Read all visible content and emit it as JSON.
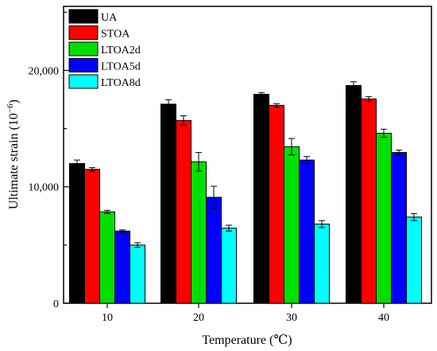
{
  "chart_data": {
    "type": "bar",
    "categories": [
      "10",
      "20",
      "30",
      "40"
    ],
    "series": [
      {
        "name": "UA",
        "color": "#000000",
        "values": [
          12000,
          17100,
          17950,
          18700
        ],
        "errors": [
          300,
          380,
          150,
          320
        ]
      },
      {
        "name": "STOA",
        "color": "#ff0000",
        "values": [
          11500,
          15700,
          17000,
          17550
        ],
        "errors": [
          150,
          400,
          150,
          200
        ]
      },
      {
        "name": "LTOA2d",
        "color": "#00e000",
        "values": [
          7850,
          12150,
          13450,
          14600
        ],
        "errors": [
          130,
          800,
          700,
          350
        ]
      },
      {
        "name": "LTOA5d",
        "color": "#0000ff",
        "values": [
          6200,
          9100,
          12300,
          12950
        ],
        "errors": [
          100,
          950,
          300,
          200
        ]
      },
      {
        "name": "LTOA8d",
        "color": "#00ffff",
        "values": [
          5000,
          6450,
          6800,
          7400
        ],
        "errors": [
          200,
          250,
          300,
          300
        ]
      }
    ],
    "title": "",
    "xlabel": "Temperature (℃)",
    "ylabel_main": "Ultimate strain (10",
    "ylabel_sup": "−6",
    "ylabel_end": ")",
    "ylim": [
      0,
      25500
    ],
    "yticks": [
      0,
      10000,
      20000
    ],
    "ytick_labels": [
      "0",
      "10,000",
      "20,000"
    ],
    "grid": false,
    "legend_position": "top-left"
  }
}
